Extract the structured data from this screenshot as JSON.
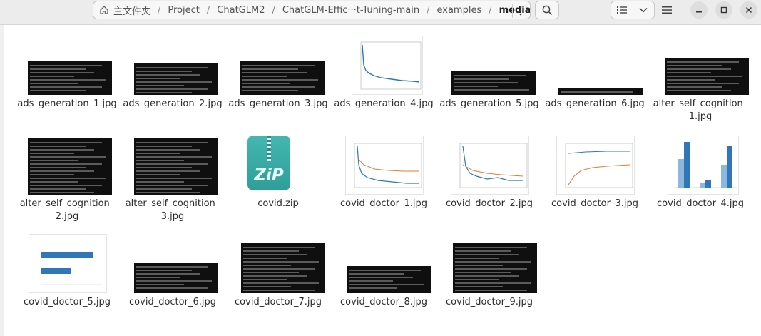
{
  "path": {
    "home": "主文件夹",
    "crumbs": [
      "Project",
      "ChatGLM2",
      "ChatGLM-Effic···t-Tuning-main",
      "examples",
      "media"
    ]
  },
  "icons": {
    "home": "home-icon",
    "path_menu": "vertical-ellipsis-icon",
    "search": "search-icon",
    "list_view": "list-view-icon",
    "view_options": "chevron-down-icon",
    "main_menu": "hamburger-menu-icon",
    "minimize": "minimize-icon",
    "maximize": "maximize-icon",
    "close": "close-icon"
  },
  "files": [
    {
      "name_line1": "ads_generation_1.jpg",
      "name_line2": ""
    },
    {
      "name_line1": "ads_generation_2.jpg",
      "name_line2": ""
    },
    {
      "name_line1": "ads_generation_3.jpg",
      "name_line2": ""
    },
    {
      "name_line1": "ads_generation_4.jpg",
      "name_line2": ""
    },
    {
      "name_line1": "ads_generation_5.jpg",
      "name_line2": ""
    },
    {
      "name_line1": "ads_generation_6.jpg",
      "name_line2": ""
    },
    {
      "name_line1": "alter_self_cognition_",
      "name_line2": "1.jpg"
    },
    {
      "name_line1": "alter_self_cognition_",
      "name_line2": "2.jpg"
    },
    {
      "name_line1": "alter_self_cognition_",
      "name_line2": "3.jpg"
    },
    {
      "name_line1": "covid.zip",
      "name_line2": ""
    },
    {
      "name_line1": "covid_doctor_1.jpg",
      "name_line2": ""
    },
    {
      "name_line1": "covid_doctor_2.jpg",
      "name_line2": ""
    },
    {
      "name_line1": "covid_doctor_3.jpg",
      "name_line2": ""
    },
    {
      "name_line1": "covid_doctor_4.jpg",
      "name_line2": ""
    },
    {
      "name_line1": "covid_doctor_5.jpg",
      "name_line2": ""
    },
    {
      "name_line1": "covid_doctor_6.jpg",
      "name_line2": ""
    },
    {
      "name_line1": "covid_doctor_7.jpg",
      "name_line2": ""
    },
    {
      "name_line1": "covid_doctor_8.jpg",
      "name_line2": ""
    },
    {
      "name_line1": "covid_doctor_9.jpg",
      "name_line2": ""
    }
  ],
  "zip_icon_text": "ZiP",
  "colors": {
    "zip": "#3aaca6",
    "plot_blue": "#2f77b8",
    "plot_orange": "#e07b39"
  }
}
